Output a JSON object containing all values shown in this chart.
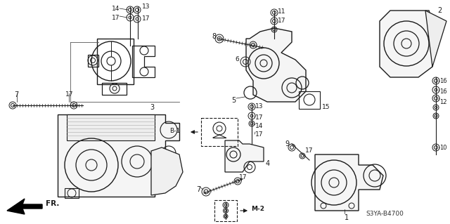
{
  "background_color": "#ffffff",
  "diagram_code": "S3YA-B4700",
  "fig_width": 6.4,
  "fig_height": 3.19,
  "dpi": 100,
  "line_color": "#1a1a1a",
  "gray": "#888888"
}
